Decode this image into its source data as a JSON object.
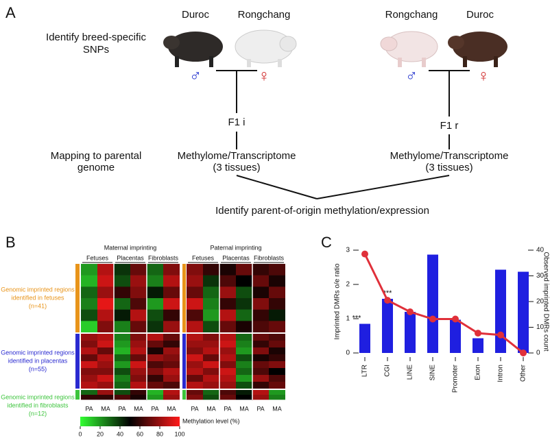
{
  "panel_a": {
    "label": "A",
    "breeds_left": [
      "Duroc",
      "Rongchang"
    ],
    "breeds_right": [
      "Rongchang",
      "Duroc"
    ],
    "male": "♂",
    "female": "♀",
    "step1_lines": [
      "Identify breed-specific",
      "SNPs"
    ],
    "step2_lines": [
      "Mapping to parental",
      "genome"
    ],
    "f1_left": "F1 i",
    "f1_right": "F1 r",
    "tissue_lines": [
      "Methylome/Transcriptome",
      "(3 tissues)"
    ],
    "step3": "Identify parent-of-origin methylation/expression"
  },
  "panel_b": {
    "label": "B",
    "blocks": [
      "Maternal imprinting",
      "Paternal imprinting"
    ],
    "tissues": [
      "Fetuses",
      "Placentas",
      "Fibroblasts"
    ],
    "columns": [
      "PA",
      "MA"
    ],
    "row_groups": [
      {
        "lines": [
          "Genomic imprinted regions",
          "identified in fetuses",
          "(n=41)"
        ],
        "color": "#e8941a",
        "rows": 6
      },
      {
        "lines": [
          "Genomic imprinted regions",
          "identified in placentas",
          "(n=55)"
        ],
        "color": "#2a2ad0",
        "rows": 8
      },
      {
        "lines": [
          "Genomic imprinted regions",
          "identified in fibroblasts",
          "(n=12)"
        ],
        "color": "#3cc43c",
        "rows": 2
      }
    ],
    "heatmap": [
      [
        20,
        85,
        40,
        70,
        30,
        75,
        75,
        60,
        55,
        70,
        60,
        65
      ],
      [
        15,
        90,
        35,
        80,
        25,
        85,
        80,
        40,
        65,
        50,
        70,
        55
      ],
      [
        30,
        80,
        60,
        75,
        45,
        70,
        70,
        30,
        80,
        35,
        55,
        70
      ],
      [
        25,
        95,
        30,
        65,
        20,
        90,
        90,
        25,
        60,
        40,
        75,
        60
      ],
      [
        35,
        85,
        45,
        85,
        35,
        60,
        65,
        20,
        85,
        30,
        60,
        45
      ],
      [
        10,
        75,
        25,
        70,
        40,
        80,
        85,
        35,
        70,
        55,
        65,
        70
      ],
      [
        80,
        85,
        25,
        75,
        85,
        70,
        85,
        75,
        85,
        30,
        70,
        65
      ],
      [
        75,
        90,
        20,
        80,
        70,
        60,
        80,
        80,
        90,
        25,
        60,
        70
      ],
      [
        85,
        70,
        15,
        85,
        55,
        80,
        75,
        85,
        80,
        20,
        75,
        55
      ],
      [
        70,
        85,
        30,
        70,
        80,
        75,
        90,
        70,
        85,
        35,
        55,
        60
      ],
      [
        90,
        80,
        20,
        90,
        65,
        70,
        80,
        90,
        75,
        25,
        70,
        75
      ],
      [
        75,
        75,
        35,
        80,
        75,
        85,
        85,
        75,
        90,
        30,
        65,
        50
      ],
      [
        80,
        90,
        25,
        75,
        60,
        80,
        70,
        85,
        85,
        20,
        80,
        65
      ],
      [
        85,
        80,
        30,
        85,
        70,
        65,
        85,
        80,
        80,
        35,
        60,
        70
      ],
      [
        30,
        80,
        35,
        60,
        15,
        85,
        70,
        30,
        65,
        45,
        85,
        20
      ],
      [
        60,
        60,
        65,
        55,
        20,
        80,
        75,
        35,
        70,
        50,
        80,
        25
      ]
    ],
    "colorbar": {
      "label": "Methylation level (%)",
      "lim": [
        0,
        100
      ],
      "ticks": [
        0,
        20,
        40,
        60,
        80,
        100
      ],
      "colors": [
        "#33ff33",
        "#000000",
        "#ff1a1a"
      ]
    }
  },
  "chart_data": {
    "type": "bar",
    "panel_label": "C",
    "categories": [
      "LTR",
      "CGI",
      "LINE",
      "SINE",
      "Promoter",
      "Exon",
      "Intron",
      "Other"
    ],
    "series": [
      {
        "type": "bar",
        "color": "#1f1fe0",
        "values": [
          0.85,
          1.58,
          1.2,
          2.87,
          0.97,
          0.43,
          2.43,
          2.37
        ],
        "value_annotations": [
          "***",
          "***",
          null,
          null,
          null,
          null,
          null,
          null
        ]
      },
      {
        "type": "line",
        "axis": "y2",
        "color": "#e0303a",
        "values": [
          38.5,
          20.5,
          16,
          13.2,
          13.2,
          7.7,
          7,
          0
        ]
      }
    ],
    "ylabel": "Imprinted DMRs o/e ratio",
    "y2label": "Observed imprinted DMRs count",
    "ylim": [
      0,
      3
    ],
    "yticks": [
      0,
      1,
      2,
      3
    ],
    "y2lim": [
      0,
      40
    ],
    "y2ticks": [
      0,
      10,
      20,
      30,
      40
    ]
  }
}
